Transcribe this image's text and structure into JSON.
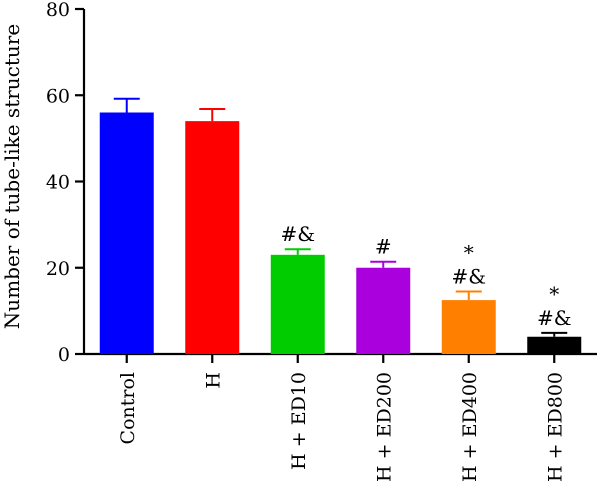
{
  "chart_data": {
    "type": "bar",
    "title": "",
    "xlabel": "",
    "ylabel": "Number of tube-like structure",
    "ylim": [
      0,
      80
    ],
    "yticks": [
      0,
      20,
      40,
      60,
      80
    ],
    "grid": false,
    "categories": [
      "Control",
      "H",
      "H + ED10",
      "H + ED200",
      "H + ED400",
      "H + ED800"
    ],
    "values": [
      56,
      54,
      23,
      20,
      12.5,
      4
    ],
    "errors": [
      3.2,
      2.8,
      1.3,
      1.4,
      2.0,
      0.9
    ],
    "annotations": [
      [],
      [],
      [
        "#&"
      ],
      [
        "#"
      ],
      [
        "*",
        "#&"
      ],
      [
        "*",
        "#&"
      ]
    ],
    "colors": [
      "#0000ff",
      "#ff0000",
      "#00cc00",
      "#aa00dd",
      "#ff8000",
      "#000000"
    ]
  }
}
